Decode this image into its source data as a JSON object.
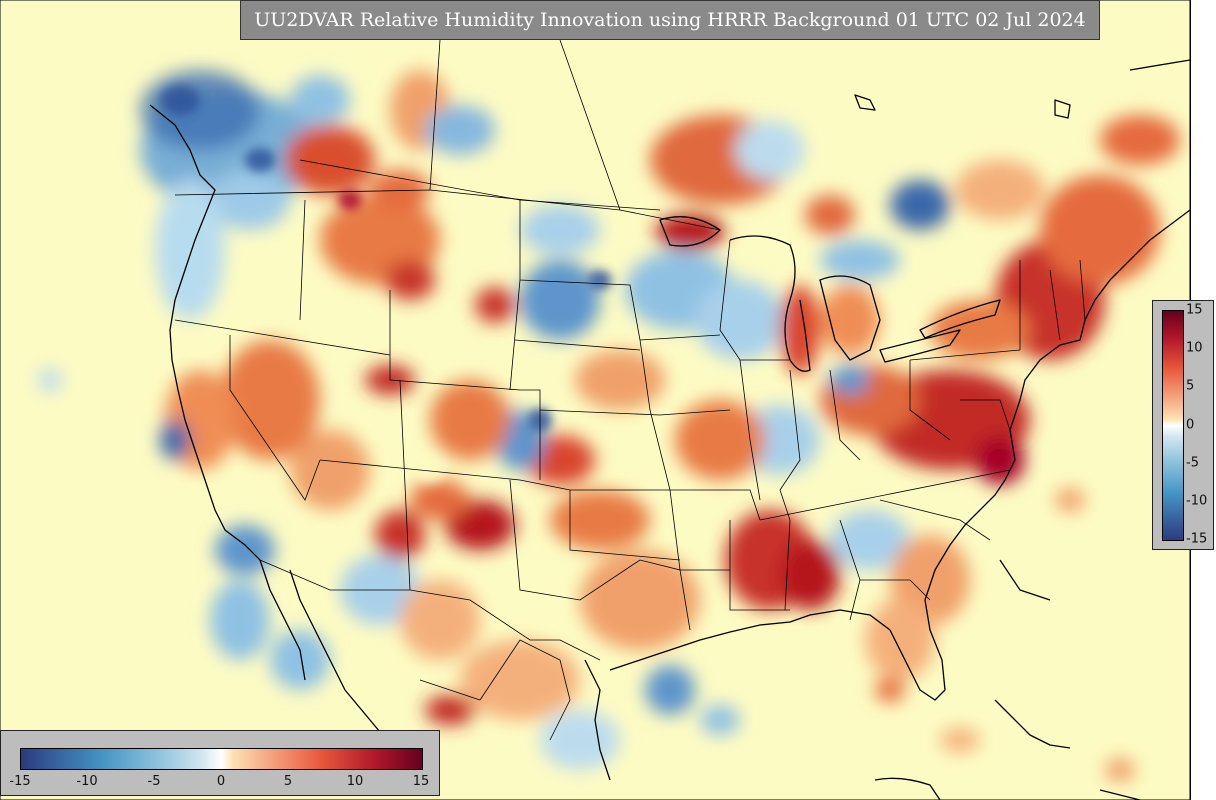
{
  "title": "UU2DVAR Relative Humidity Innovation using HRRR Background 01 UTC 02 Jul 2024",
  "colorbar_right": {
    "ticks": [
      "15",
      "10",
      "5",
      "0",
      "-5",
      "-10",
      "-15"
    ]
  },
  "colorbar_bottom": {
    "ticks": [
      "-15",
      "-10",
      "-5",
      "0",
      "5",
      "10",
      "15"
    ]
  },
  "colors": {
    "background_field": "#fdfbc4",
    "positive_strong": "#a50026",
    "positive_mid": "#e8573a",
    "positive_weak": "#fdae61",
    "negative_weak": "#abd9e9",
    "negative_mid": "#5a9bd0",
    "negative_strong": "#313695",
    "panel_gray": "#8a8a8a"
  },
  "map": {
    "type": "filled-contour field over North America with state and country borders",
    "range": [
      -15,
      15
    ]
  }
}
